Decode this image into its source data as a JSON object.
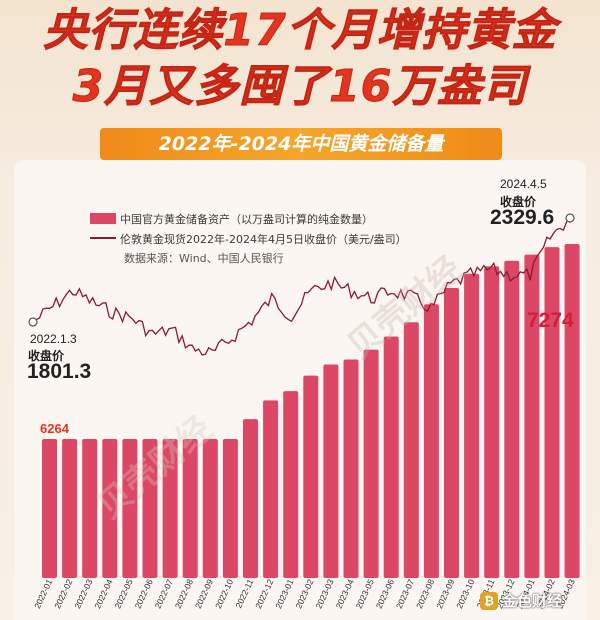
{
  "header": {
    "title_line1": "央行连续17个月增持黄金",
    "title_line2": "3月又多囤了16万盎司",
    "subtitle": "2022年-2024年中国黄金储备量"
  },
  "legend": {
    "reserve": "中国官方黄金储备资产（以万盎司计算的纯金数量）",
    "price": "伦敦黄金现货2022年-2024年4月5日收盘价（美元/盎司）",
    "source": "数据来源：Wind、中国人民银行"
  },
  "annotations": {
    "start_date": "2022.1.3",
    "start_label": "收盘价",
    "start_value": "1801.3",
    "end_date": "2024.4.5",
    "end_label": "收盘价",
    "end_value": "2329.6",
    "first_bar_label": "6264",
    "last_bar_label": "7274"
  },
  "watermark": "贝壳财经",
  "footer_logo": "金色财经",
  "colors": {
    "bar": "#dc4766",
    "bar_label_first": "#e2341f",
    "bar_label_last": "#d21d3c",
    "price_line": "#8c1a2e",
    "title": "#e2341f",
    "banner": "#f39a22"
  },
  "chart_data": [
    {
      "type": "bar",
      "series": [
        {
          "name": "中国官方黄金储备资产（以万盎司计算的纯金数量）",
          "unit": "万盎司"
        }
      ],
      "categories": [
        "2022-01",
        "2022-02",
        "2022-03",
        "2022-04",
        "2022-05",
        "2022-06",
        "2022-07",
        "2022-08",
        "2022-09",
        "2022-10",
        "2022-11",
        "2022-12",
        "2023-01",
        "2023-02",
        "2023-03",
        "2023-04",
        "2023-05",
        "2023-06",
        "2023-07",
        "2023-08",
        "2023-09",
        "2023-10",
        "2023-11",
        "2023-12",
        "2024-01",
        "2024-02",
        "2024-03"
      ],
      "values": [
        6264,
        6264,
        6264,
        6264,
        6264,
        6264,
        6264,
        6264,
        6264,
        6264,
        6367,
        6464,
        6512,
        6592,
        6650,
        6676,
        6727,
        6795,
        6869,
        6962,
        7046,
        7120,
        7158,
        7187,
        7219,
        7258,
        7274
      ],
      "data_labels": {
        "2022-01": "6264",
        "2024-03": "7274"
      }
    },
    {
      "type": "line",
      "series": [
        {
          "name": "伦敦黄金现货2022年-2024年4月5日收盘价（美元/盎司）",
          "unit": "美元/盎司"
        }
      ],
      "start": {
        "date": "2022.1.3",
        "value": 1801.3
      },
      "end": {
        "date": "2024.4.5",
        "value": 2329.6
      },
      "monthly_approx": [
        {
          "x": "2022-01",
          "y": 1800
        },
        {
          "x": "2022-02",
          "y": 1880
        },
        {
          "x": "2022-03",
          "y": 1960
        },
        {
          "x": "2022-04",
          "y": 1900
        },
        {
          "x": "2022-05",
          "y": 1850
        },
        {
          "x": "2022-06",
          "y": 1820
        },
        {
          "x": "2022-07",
          "y": 1740
        },
        {
          "x": "2022-08",
          "y": 1760
        },
        {
          "x": "2022-09",
          "y": 1665
        },
        {
          "x": "2022-10",
          "y": 1640
        },
        {
          "x": "2022-11",
          "y": 1720
        },
        {
          "x": "2022-12",
          "y": 1810
        },
        {
          "x": "2023-01",
          "y": 1920
        },
        {
          "x": "2023-02",
          "y": 1830
        },
        {
          "x": "2023-03",
          "y": 1960
        },
        {
          "x": "2023-04",
          "y": 2000
        },
        {
          "x": "2023-05",
          "y": 1960
        },
        {
          "x": "2023-06",
          "y": 1920
        },
        {
          "x": "2023-07",
          "y": 1960
        },
        {
          "x": "2023-08",
          "y": 1930
        },
        {
          "x": "2023-09",
          "y": 1870
        },
        {
          "x": "2023-10",
          "y": 1990
        },
        {
          "x": "2023-11",
          "y": 2040
        },
        {
          "x": "2023-12",
          "y": 2070
        },
        {
          "x": "2024-01",
          "y": 2040
        },
        {
          "x": "2024-02",
          "y": 2040
        },
        {
          "x": "2024-03",
          "y": 2230
        },
        {
          "x": "2024-04",
          "y": 2329.6
        }
      ]
    }
  ]
}
